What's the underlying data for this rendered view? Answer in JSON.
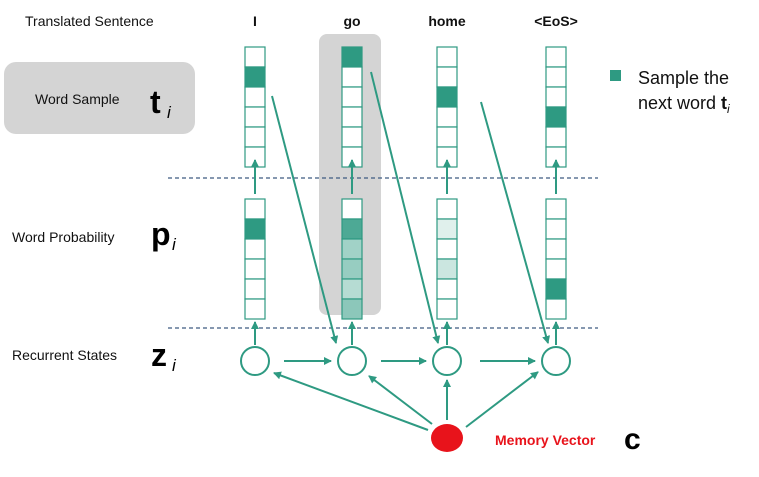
{
  "labels": {
    "translated_sentence": "Translated Sentence",
    "word_sample": "Word Sample",
    "word_probability": "Word Probability",
    "recurrent_states": "Recurrent States",
    "memory_vector": "Memory Vector"
  },
  "symbols": {
    "t": "t",
    "p": "p",
    "z": "z",
    "c": "c",
    "subscript": "i"
  },
  "words": [
    "I",
    "go",
    "home",
    "<EoS>"
  ],
  "legend": {
    "line1": "Sample the",
    "line2_text": "next word ",
    "line2_symbol": "t",
    "line2_sub": "i"
  },
  "colors": {
    "teal": "#2e9a82",
    "teal_dark": "#1f8a72",
    "highlight_gray": "#d4d4d4",
    "memory_red": "#e8131b",
    "dashed": "#3d5a80"
  },
  "columns": [
    {
      "word": "I",
      "sample_filled": 1,
      "probability_shades": [
        0,
        1,
        0,
        0,
        0,
        0
      ]
    },
    {
      "word": "go",
      "sample_filled": 0,
      "probability_shades": [
        0,
        0.85,
        0.45,
        0.5,
        0.35,
        0.55
      ]
    },
    {
      "word": "home",
      "sample_filled": 2,
      "probability_shades": [
        0,
        0.15,
        0,
        0.25,
        0,
        0
      ]
    },
    {
      "word": "<EoS>",
      "sample_filled": 3,
      "probability_shades": [
        0,
        0,
        0,
        0,
        1,
        0
      ]
    }
  ]
}
